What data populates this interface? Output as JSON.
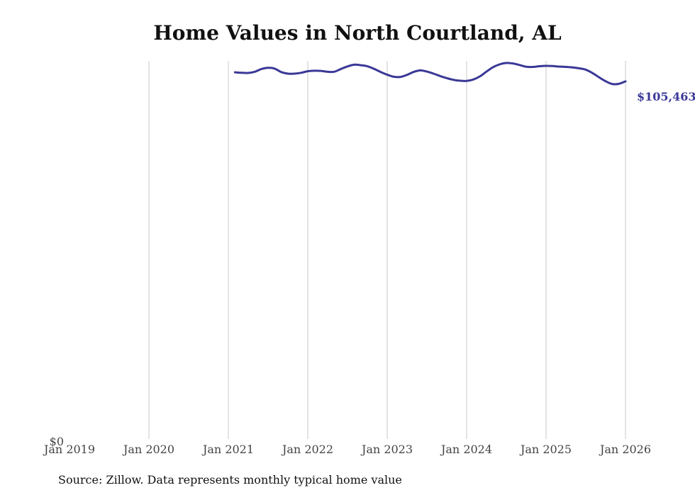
{
  "chart_data": {
    "type": "line",
    "title": "Home Values in North Courtland, AL",
    "xlabel": "",
    "ylabel": "",
    "x_ticks": [
      "Jan 2019",
      "Jan 2020",
      "Jan 2021",
      "Jan 2022",
      "Jan 2023",
      "Jan 2024",
      "Jan 2025",
      "Jan 2026"
    ],
    "y_ticks": [
      "$0"
    ],
    "grid": "vertical",
    "legend": "none",
    "series": [
      {
        "name": "North Courtland, AL",
        "color": "#3a3896",
        "start": "Feb 2021",
        "values": [
          108100,
          107950,
          107900,
          108250,
          109050,
          109400,
          109150,
          108150,
          107700,
          107700,
          107950,
          108400,
          108550,
          108500,
          108250,
          108250,
          109050,
          109800,
          110300,
          110150,
          109850,
          109100,
          108200,
          107400,
          106800,
          106750,
          107350,
          108200,
          108650,
          108300,
          107700,
          107000,
          106400,
          105900,
          105650,
          105600,
          106000,
          106900,
          108300,
          109600,
          110400,
          110800,
          110650,
          110200,
          109700,
          109650,
          109850,
          109950,
          109900,
          109750,
          109650,
          109500,
          109250,
          108850,
          107900,
          106650,
          105500,
          104700,
          104750,
          105463
        ]
      }
    ],
    "end_value_label": "$105,463",
    "ylim": [
      0,
      111400
    ],
    "xlim_months": [
      0,
      84
    ]
  },
  "source": "Source: Zillow. Data represents monthly typical home value"
}
